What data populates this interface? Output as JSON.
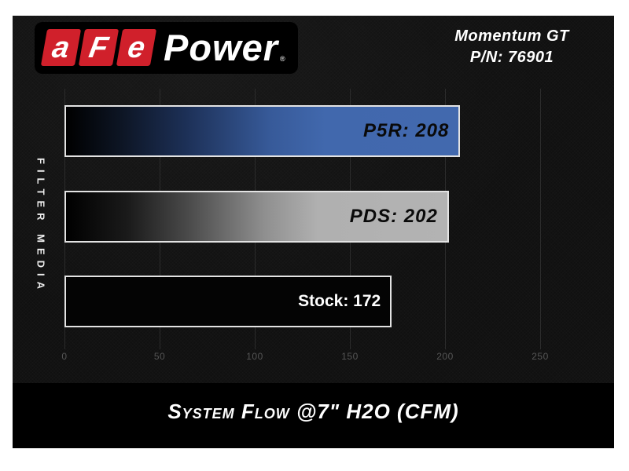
{
  "header": {
    "logo": {
      "letters": [
        "a",
        "F",
        "e"
      ],
      "wordmark": "Power",
      "registered_mark": "®"
    },
    "model": "Momentum GT",
    "part_number": "P/N: 76901"
  },
  "chart_data": {
    "type": "bar",
    "orientation": "horizontal",
    "title": "System Flow @7\" H2O (CFM)",
    "ylabel": "FILTER MEDIA",
    "xlim": [
      0,
      250
    ],
    "x_ticks": [
      0,
      50,
      100,
      150,
      200,
      250
    ],
    "grid": true,
    "legend_position": "none",
    "categories": [
      "P5R",
      "PDS",
      "Stock"
    ],
    "values": [
      208,
      202,
      172
    ],
    "bar_labels": [
      "P5R: 208",
      "PDS: 202",
      "Stock: 172"
    ],
    "bar_styles": [
      {
        "fill": "gradient-black-to-blue",
        "end_color": "#4168ad",
        "label_color": "#0a0a0a"
      },
      {
        "fill": "gradient-black-to-gray",
        "end_color": "#b2b2b2",
        "label_color": "#0a0a0a"
      },
      {
        "fill": "solid-black",
        "end_color": "#040404",
        "label_color": "#ffffff"
      }
    ]
  },
  "colors": {
    "accent_red": "#d0202b",
    "canvas_black": "#101010",
    "bar_border": "#e3e3e3",
    "gridline": "#2c2c2c",
    "tick_label": "#555555",
    "text_white": "#ffffff"
  }
}
